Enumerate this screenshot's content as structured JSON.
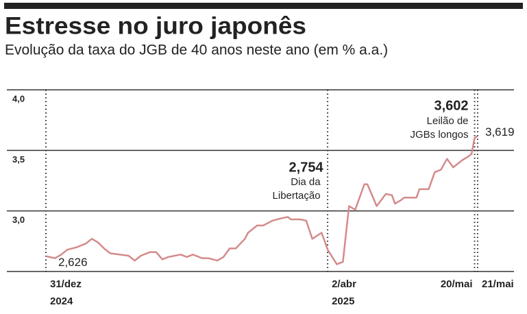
{
  "chart_data": {
    "type": "line",
    "title": "Estresse no juro japonês",
    "subtitle": "Evolução da taxa do JGB de 40 anos neste ano (em % a.a.)",
    "x": [
      "2024-12-31",
      "2025-01-03",
      "2025-01-05",
      "2025-01-07",
      "2025-01-10",
      "2025-01-12",
      "2025-01-13",
      "2025-01-15",
      "2025-01-17",
      "2025-01-19",
      "2025-01-21",
      "2025-01-24",
      "2025-01-27",
      "2025-01-29",
      "2025-01-31",
      "2025-02-03",
      "2025-02-05",
      "2025-02-07",
      "2025-02-09",
      "2025-02-13",
      "2025-02-15",
      "2025-02-17",
      "2025-02-20",
      "2025-02-22",
      "2025-02-25",
      "2025-02-27",
      "2025-03-01",
      "2025-03-03",
      "2025-03-06",
      "2025-03-07",
      "2025-03-10",
      "2025-03-12",
      "2025-03-15",
      "2025-03-18",
      "2025-03-20",
      "2025-03-21",
      "2025-03-24",
      "2025-03-26",
      "2025-03-28",
      "2025-03-31",
      "2025-04-01",
      "2025-04-02",
      "2025-04-05",
      "2025-04-07",
      "2025-04-09",
      "2025-04-11",
      "2025-04-14",
      "2025-04-15",
      "2025-04-18",
      "2025-04-21",
      "2025-04-23",
      "2025-04-24",
      "2025-04-26",
      "2025-04-27",
      "2025-05-01",
      "2025-05-02",
      "2025-05-05",
      "2025-05-07",
      "2025-05-09",
      "2025-05-11",
      "2025-05-13",
      "2025-05-16",
      "2025-05-18",
      "2025-05-19",
      "2025-05-20",
      "2025-05-21"
    ],
    "series": [
      {
        "name": "JGB 40 anos",
        "color": "#d48a8a",
        "values": [
          2.626,
          2.61,
          2.64,
          2.68,
          2.7,
          2.72,
          2.73,
          2.77,
          2.74,
          2.69,
          2.65,
          2.64,
          2.63,
          2.59,
          2.63,
          2.66,
          2.66,
          2.6,
          2.62,
          2.64,
          2.62,
          2.64,
          2.61,
          2.61,
          2.59,
          2.62,
          2.69,
          2.69,
          2.77,
          2.82,
          2.88,
          2.88,
          2.92,
          2.94,
          2.95,
          2.93,
          2.93,
          2.92,
          2.77,
          2.82,
          2.754,
          2.68,
          2.56,
          2.58,
          3.04,
          3.01,
          3.22,
          3.22,
          3.04,
          3.14,
          3.13,
          3.06,
          3.09,
          3.11,
          3.11,
          3.18,
          3.18,
          3.32,
          3.34,
          3.43,
          3.36,
          3.42,
          3.45,
          3.47,
          3.602,
          3.619
        ],
        "value_labels": [
          "2,626",
          null,
          null,
          null,
          null,
          null,
          null,
          null,
          null,
          null,
          null,
          null,
          null,
          null,
          null,
          null,
          null,
          null,
          null,
          null,
          null,
          null,
          null,
          null,
          null,
          null,
          null,
          null,
          null,
          null,
          null,
          null,
          null,
          null,
          null,
          null,
          null,
          null,
          null,
          null,
          "2,754",
          null,
          null,
          null,
          null,
          null,
          null,
          null,
          null,
          null,
          null,
          null,
          null,
          null,
          null,
          null,
          null,
          null,
          null,
          null,
          null,
          null,
          null,
          null,
          "3,602",
          "3,619"
        ]
      }
    ],
    "annotations": [
      {
        "x": "2025-04-01",
        "lines": [
          "Dia da",
          "Libertação"
        ]
      },
      {
        "x": "2025-05-20",
        "lines": [
          "Leilão de",
          "JGBs longos"
        ]
      }
    ],
    "xlim": [
      "2024-12-31",
      "2025-05-21"
    ],
    "xticks": [
      {
        "value": "2024-12-31",
        "label": [
          "31/dez",
          "2024"
        ]
      },
      {
        "value": "2025-04-02",
        "label": [
          "2/abr",
          "2025"
        ]
      },
      {
        "value": "2025-05-20",
        "label": [
          "20/mai"
        ]
      },
      {
        "value": "2025-05-21",
        "label": [
          "21/mai"
        ]
      }
    ],
    "ylim": [
      2.5,
      4.0
    ],
    "yticks": [
      {
        "value": 3.0,
        "label": "3,0"
      },
      {
        "value": 3.5,
        "label": "3,5"
      },
      {
        "value": 4.0,
        "label": "4,0"
      }
    ],
    "grid": true
  }
}
